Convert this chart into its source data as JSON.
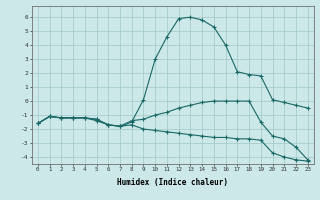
{
  "xlabel": "Humidex (Indice chaleur)",
  "bg_color": "#cce8e8",
  "grid_color": "#a0c8c8",
  "line_color": "#1a6868",
  "xlim": [
    -0.5,
    23.5
  ],
  "ylim": [
    -4.5,
    6.8
  ],
  "line1_x": [
    0,
    1,
    2,
    3,
    4,
    5,
    6,
    7,
    8,
    9,
    10,
    11,
    12,
    13,
    14,
    15,
    16,
    17,
    18,
    19,
    20,
    21,
    22,
    23
  ],
  "line1_y": [
    -1.6,
    -1.1,
    -1.2,
    -1.2,
    -1.2,
    -1.3,
    -1.7,
    -1.8,
    -1.5,
    0.1,
    3.0,
    4.6,
    5.9,
    6.0,
    5.8,
    5.3,
    4.0,
    2.1,
    1.9,
    1.8,
    0.1,
    -0.1,
    -0.3,
    -0.5
  ],
  "line2_x": [
    0,
    1,
    2,
    3,
    4,
    5,
    6,
    7,
    8,
    9,
    10,
    11,
    12,
    13,
    14,
    15,
    16,
    17,
    18,
    19,
    20,
    21,
    22,
    23
  ],
  "line2_y": [
    -1.6,
    -1.1,
    -1.2,
    -1.2,
    -1.2,
    -1.3,
    -1.7,
    -1.8,
    -1.4,
    -1.3,
    -1.0,
    -0.8,
    -0.5,
    -0.3,
    -0.1,
    0.0,
    0.0,
    0.0,
    0.0,
    -1.5,
    -2.5,
    -2.7,
    -3.3,
    -4.2
  ],
  "line3_x": [
    0,
    1,
    2,
    3,
    4,
    5,
    6,
    7,
    8,
    9,
    10,
    11,
    12,
    13,
    14,
    15,
    16,
    17,
    18,
    19,
    20,
    21,
    22,
    23
  ],
  "line3_y": [
    -1.6,
    -1.1,
    -1.2,
    -1.2,
    -1.2,
    -1.4,
    -1.7,
    -1.8,
    -1.7,
    -2.0,
    -2.1,
    -2.2,
    -2.3,
    -2.4,
    -2.5,
    -2.6,
    -2.6,
    -2.7,
    -2.7,
    -2.8,
    -3.7,
    -4.0,
    -4.2,
    -4.3
  ],
  "yticks": [
    -4,
    -3,
    -2,
    -1,
    0,
    1,
    2,
    3,
    4,
    5,
    6
  ],
  "xticks": [
    0,
    1,
    2,
    3,
    4,
    5,
    6,
    7,
    8,
    9,
    10,
    11,
    12,
    13,
    14,
    15,
    16,
    17,
    18,
    19,
    20,
    21,
    22,
    23
  ]
}
